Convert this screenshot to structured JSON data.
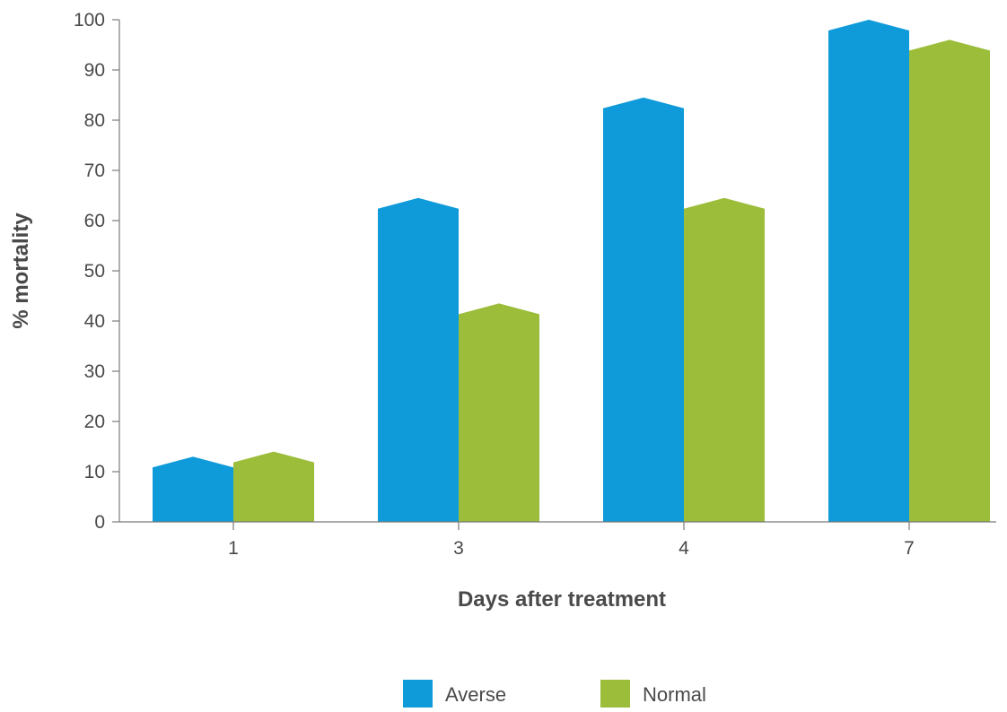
{
  "chart_data": {
    "type": "bar",
    "title": "",
    "xlabel": "Days after treatment",
    "ylabel": "% mortality",
    "categories": [
      "1",
      "3",
      "4",
      "7"
    ],
    "series": [
      {
        "name": "Averse",
        "color": "#0f9ad9",
        "values": [
          13,
          64.5,
          84.5,
          100
        ]
      },
      {
        "name": "Normal",
        "color": "#9bbd3a",
        "values": [
          14,
          43.5,
          64.5,
          96
        ]
      }
    ],
    "ylim": [
      0,
      100
    ],
    "yticks": [
      0,
      10,
      20,
      30,
      40,
      50,
      60,
      70,
      80,
      90,
      100
    ],
    "grid": false,
    "legend_position": "bottom"
  }
}
